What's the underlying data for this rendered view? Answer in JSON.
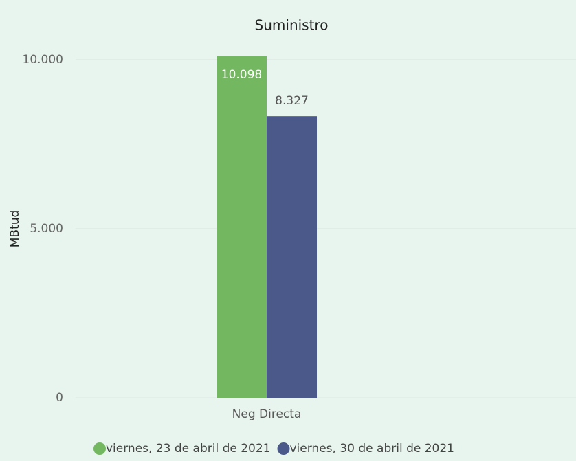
{
  "chart_data": {
    "type": "bar",
    "title": "Suministro",
    "y_label": "MBtud",
    "categories": [
      "Neg Directa"
    ],
    "series": [
      {
        "name": "viernes, 23 de abril de 2021",
        "color": "#73b761",
        "values": [
          10098
        ],
        "value_labels": [
          "10.098"
        ]
      },
      {
        "name": "viernes, 30 de abril de 2021",
        "color": "#4a588a",
        "values": [
          8327
        ],
        "value_labels": [
          "8.327"
        ]
      }
    ],
    "ylim": [
      0,
      10200
    ],
    "yticks": [
      0,
      {
        "value": 5000,
        "label": "5.000"
      },
      {
        "value": 10000,
        "label": "10.000"
      }
    ],
    "grid": true,
    "legend": "bottom"
  }
}
